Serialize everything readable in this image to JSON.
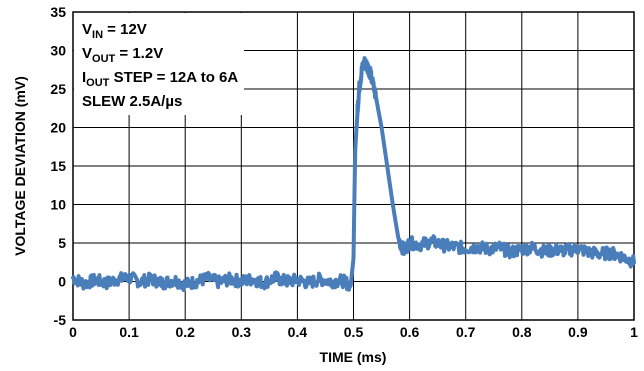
{
  "chart_data": {
    "type": "line",
    "xlabel": "TIME (ms)",
    "ylabel": "VOLTAGE DEVIATION (mV)",
    "xlim": [
      0,
      1
    ],
    "ylim": [
      -5,
      35
    ],
    "xticks": [
      0,
      0.1,
      0.2,
      0.3,
      0.4,
      0.5,
      0.6,
      0.7,
      0.8,
      0.9,
      1
    ],
    "xtick_labels": [
      "0",
      "0.1",
      "0.2",
      "0.3",
      "0.4",
      "0.5",
      "0.6",
      "0.7",
      "0.8",
      "0.9",
      "1"
    ],
    "yticks": [
      -5,
      0,
      5,
      10,
      15,
      20,
      25,
      30,
      35
    ],
    "ytick_labels": [
      "-5",
      "0",
      "5",
      "10",
      "15",
      "20",
      "25",
      "30",
      "35"
    ],
    "grid": true,
    "line_color": "#4a7ebb",
    "annotations": [
      {
        "main": "V",
        "sub": "IN",
        "rest": " = 12V"
      },
      {
        "main": "V",
        "sub": "OUT",
        "rest": " = 1.2V"
      },
      {
        "main": "I",
        "sub": "OUT",
        "rest": " STEP = 12A to 6A"
      },
      {
        "main": "SLEW 2.5A/µs",
        "sub": "",
        "rest": ""
      }
    ],
    "series": [
      {
        "x": [
          0,
          0.02,
          0.04,
          0.06,
          0.08,
          0.1,
          0.12,
          0.14,
          0.16,
          0.18,
          0.2,
          0.22,
          0.24,
          0.26,
          0.28,
          0.3,
          0.32,
          0.34,
          0.36,
          0.38,
          0.4,
          0.42,
          0.44,
          0.46,
          0.48,
          0.495,
          0.5,
          0.503,
          0.507,
          0.51,
          0.515,
          0.52,
          0.525,
          0.53,
          0.54,
          0.55,
          0.56,
          0.57,
          0.58,
          0.59,
          0.6,
          0.62,
          0.64,
          0.66,
          0.68,
          0.7,
          0.72,
          0.74,
          0.76,
          0.78,
          0.8,
          0.82,
          0.84,
          0.86,
          0.88,
          0.9,
          0.92,
          0.94,
          0.96,
          0.98,
          1.0
        ],
        "y": [
          0.5,
          -0.3,
          0.2,
          -0.2,
          0.3,
          0.5,
          0.0,
          0.3,
          -0.2,
          0.2,
          -0.4,
          0.0,
          0.4,
          -0.1,
          0.3,
          0.0,
          0.3,
          -0.2,
          0.5,
          0.0,
          0.2,
          -0.2,
          0.3,
          0.0,
          0.1,
          -0.5,
          3.0,
          17.0,
          22.0,
          25.0,
          27.5,
          28.5,
          28.0,
          27.0,
          24.0,
          20.0,
          15.0,
          10.0,
          5.5,
          4.0,
          5.0,
          4.8,
          5.2,
          4.7,
          4.5,
          4.3,
          4.5,
          4.2,
          4.4,
          3.8,
          4.2,
          4.4,
          3.9,
          4.1,
          4.0,
          4.3,
          3.8,
          3.6,
          3.7,
          3.2,
          2.5
        ]
      }
    ]
  }
}
